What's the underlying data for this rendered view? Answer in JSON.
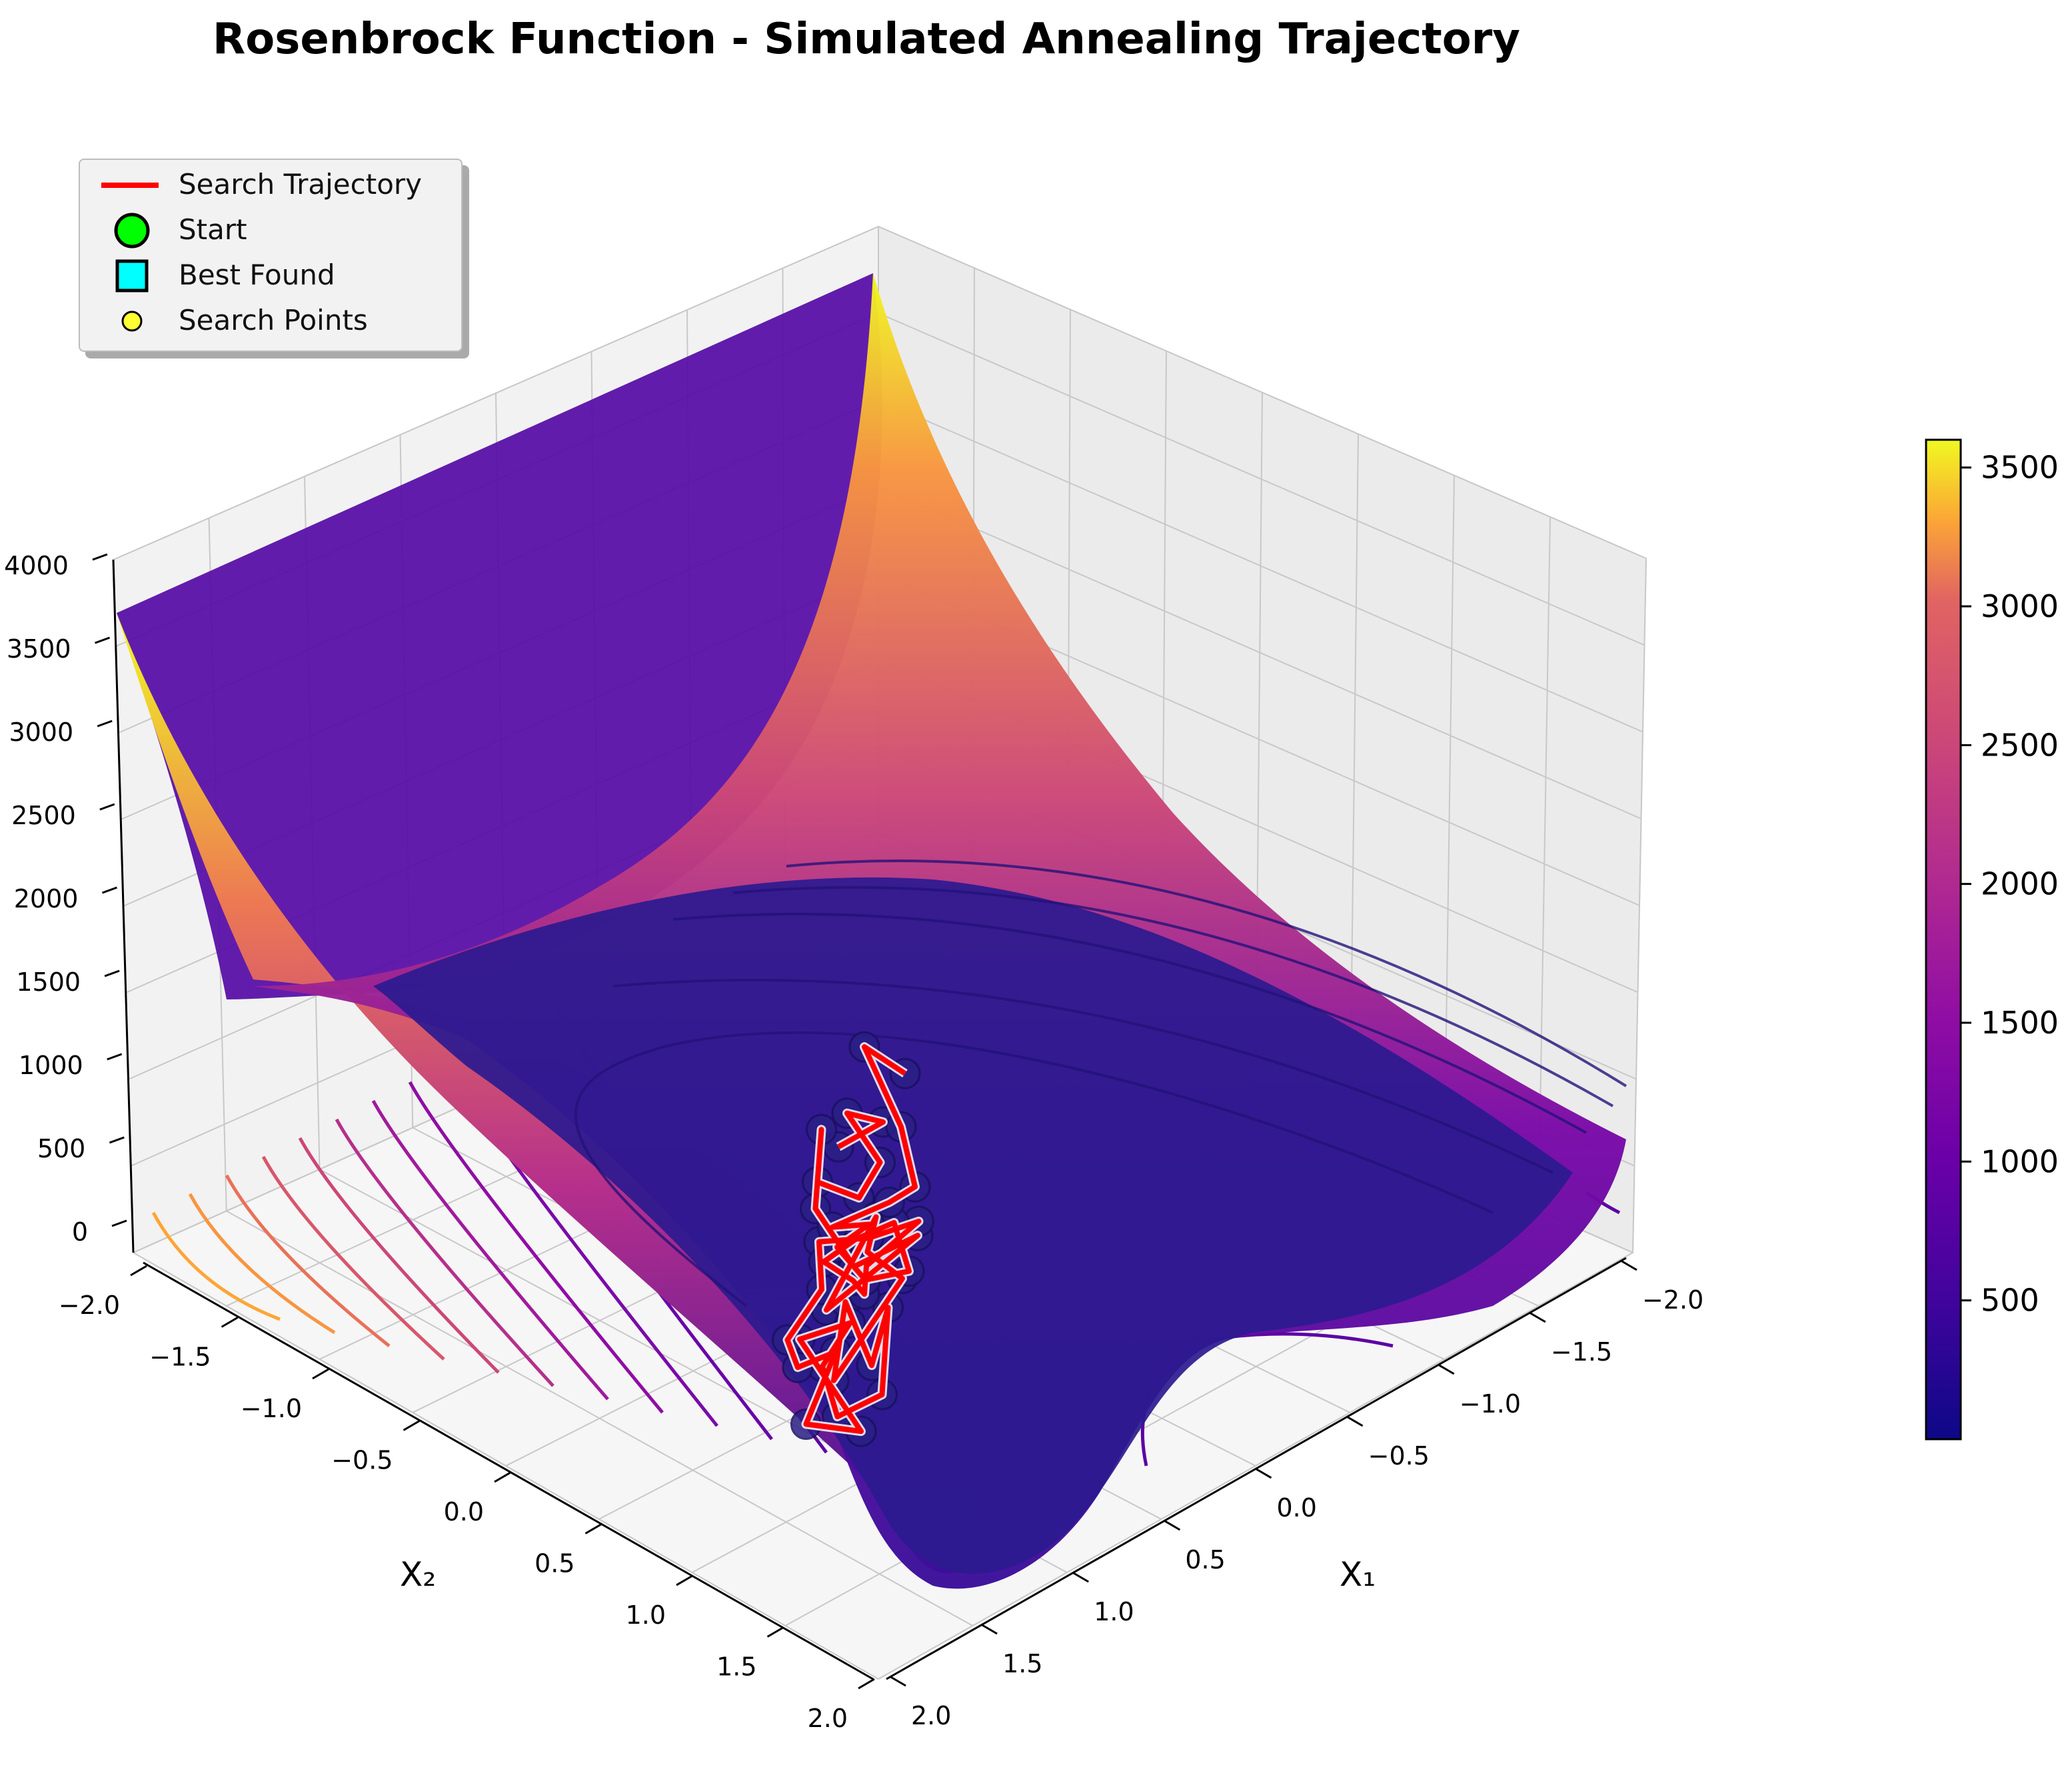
{
  "chart_data": {
    "type": "surface3d",
    "title": "Rosenbrock Function - Simulated Annealing Trajectory",
    "xlabel": "X₁",
    "ylabel": "X₂",
    "zlabel": "",
    "xlim": [
      -2.0,
      2.0
    ],
    "ylim": [
      -2.0,
      2.0
    ],
    "zlim": [
      0,
      4000
    ],
    "x_ticks": [
      "−2.0",
      "−1.5",
      "−1.0",
      "−0.5",
      "0.0",
      "0.5",
      "1.0",
      "1.5",
      "2.0"
    ],
    "y_ticks": [
      "−2.0",
      "−1.5",
      "−1.0",
      "−0.5",
      "0.0",
      "0.5",
      "1.0",
      "1.5",
      "2.0"
    ],
    "z_ticks": [
      "0",
      "500",
      "1000",
      "1500",
      "2000",
      "2500",
      "3000",
      "3500",
      "4000"
    ],
    "colormap": "plasma",
    "colorbar": {
      "ticks": [
        "500",
        "1000",
        "1500",
        "2000",
        "2500",
        "3000",
        "3500"
      ],
      "range": [
        0,
        3600
      ]
    },
    "legend": {
      "placement": "upper-left",
      "entries": [
        {
          "label": "Search Trajectory",
          "marker": "line",
          "color": "#ff0000"
        },
        {
          "label": "Start",
          "marker": "circle",
          "color": "#00ff00"
        },
        {
          "label": "Best Found",
          "marker": "square",
          "color": "#00ffff"
        },
        {
          "label": "Search Points",
          "marker": "small-circle",
          "color": "#ffff33"
        }
      ]
    },
    "trajectory": {
      "color": "#ff0000",
      "points": [
        [
          0.6,
          0.3
        ],
        [
          0.5,
          0.55
        ],
        [
          0.7,
          0.45
        ],
        [
          0.35,
          0.4
        ],
        [
          0.3,
          0.2
        ],
        [
          0.55,
          0.1
        ],
        [
          0.75,
          0.3
        ],
        [
          0.45,
          0.0
        ],
        [
          0.05,
          -0.05
        ],
        [
          -0.1,
          0.3
        ],
        [
          0.0,
          -0.3
        ],
        [
          0.15,
          0.2
        ],
        [
          0.05,
          0.05
        ],
        [
          -0.2,
          0.1
        ],
        [
          -0.3,
          -0.5
        ],
        [
          -0.05,
          -0.2
        ],
        [
          -0.4,
          -0.3
        ],
        [
          -0.25,
          -0.05
        ],
        [
          -0.55,
          -0.35
        ],
        [
          -0.45,
          -0.6
        ],
        [
          -0.2,
          -0.5
        ],
        [
          -0.15,
          -0.25
        ],
        [
          0.0,
          -0.5
        ],
        [
          -0.6,
          -0.55
        ],
        [
          -0.35,
          -0.75
        ],
        [
          -0.2,
          -0.4
        ],
        [
          -0.1,
          -0.6
        ],
        [
          0.05,
          -0.55
        ],
        [
          0.1,
          -0.25
        ],
        [
          0.3,
          -0.1
        ],
        [
          0.1,
          0.1
        ],
        [
          -0.05,
          0.35
        ],
        [
          0.0,
          0.0
        ],
        [
          -0.1,
          -0.1
        ],
        [
          0.0,
          -0.1
        ],
        [
          0.2,
          -0.15
        ],
        [
          0.15,
          0.05
        ],
        [
          0.05,
          0.25
        ],
        [
          -0.2,
          0.15
        ],
        [
          -0.05,
          -0.05
        ],
        [
          0.2,
          -0.05
        ],
        [
          0.15,
          0.15
        ],
        [
          0.3,
          0.0
        ],
        [
          0.15,
          0.3
        ],
        [
          0.1,
          0.45
        ],
        [
          0.4,
          0.6
        ],
        [
          0.9,
          0.75
        ],
        [
          0.6,
          0.8
        ]
      ]
    }
  }
}
